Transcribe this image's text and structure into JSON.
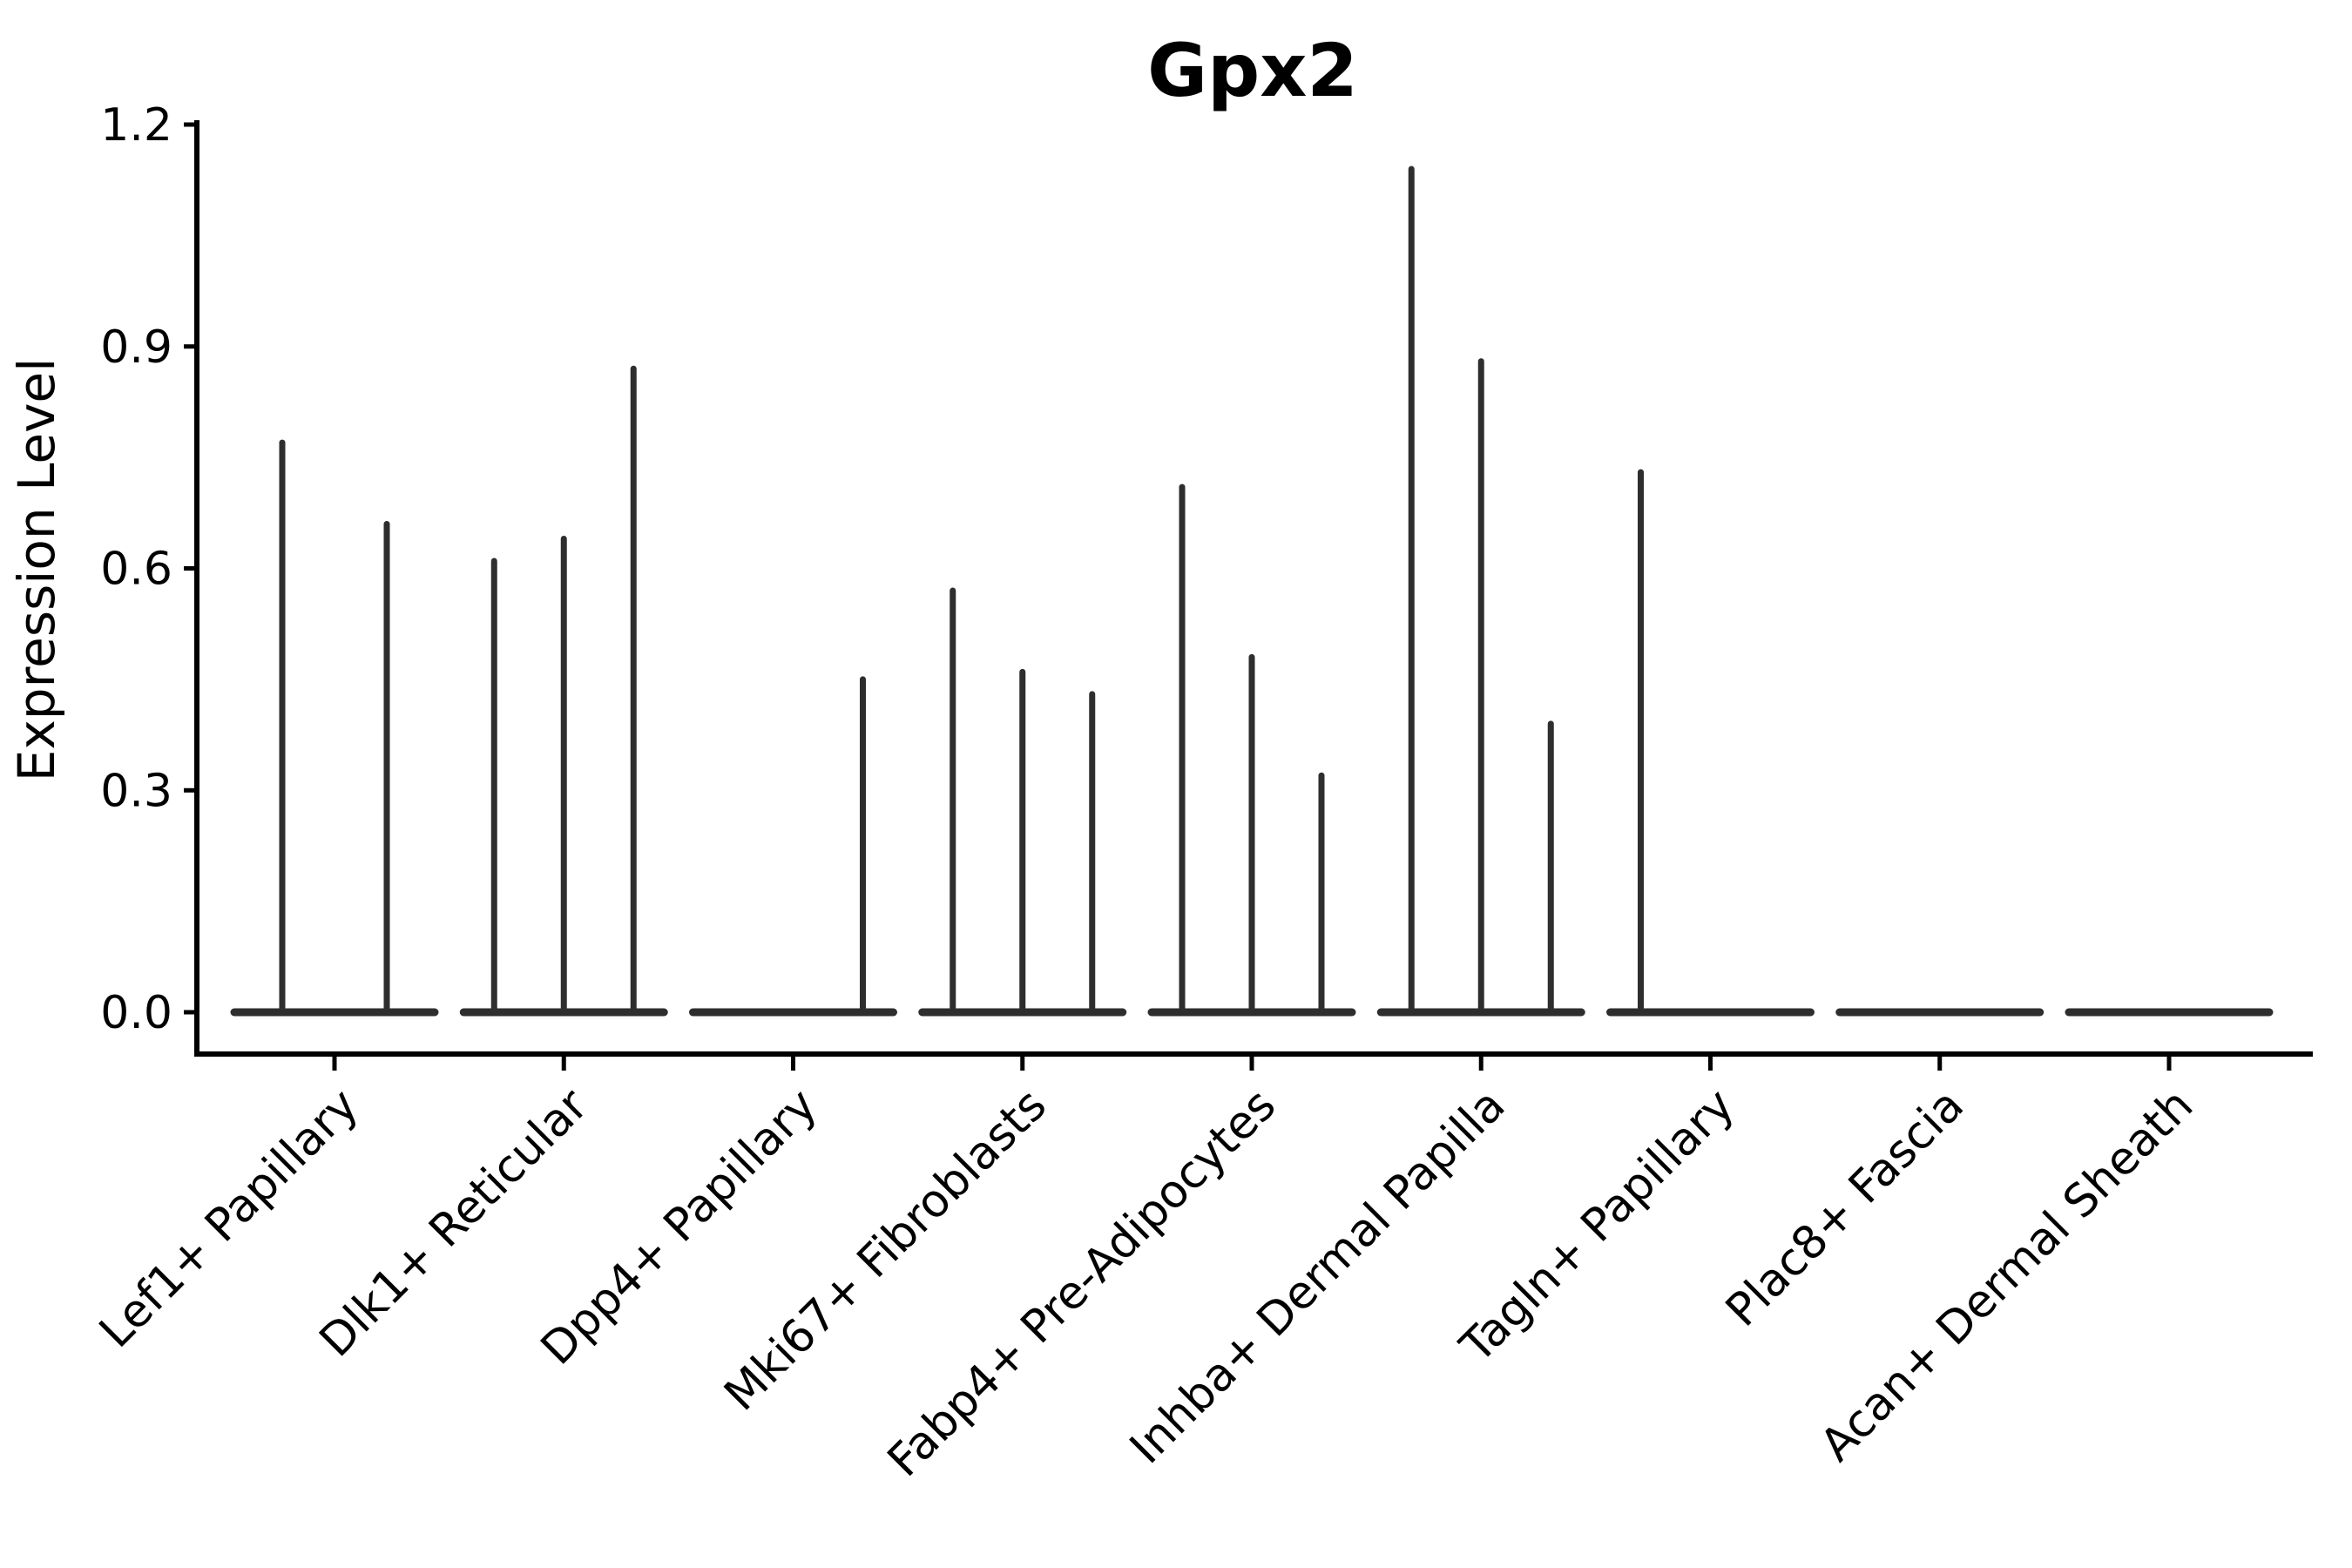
{
  "chart_data": {
    "type": "violin",
    "title": "Gpx2",
    "ylabel": "Expression Level",
    "xlabel": "",
    "ylim": [
      0,
      1.2
    ],
    "yticks": [
      "0.0",
      "0.3",
      "0.6",
      "0.9",
      "1.2"
    ],
    "grid": false,
    "legend": "none",
    "axis_color": "#000000",
    "violin_color": "#2e2e2e",
    "categories": [
      "Lef1+ Papillary",
      "Dlk1+ Reticular",
      "Dpp4+ Papillary",
      "Mki67+ Fibroblasts",
      "Fabp4+ Pre-Adipocytes",
      "Inhba+ Dermal Papilla",
      "Tagln+ Papillary",
      "Plac8+ Fascia",
      "Acan+ Dermal Sheath"
    ],
    "series": [
      {
        "category": "Lef1+ Papillary",
        "violin_maxima": [
          0.77,
          0.66
        ]
      },
      {
        "category": "Dlk1+ Reticular",
        "violin_maxima": [
          0.61,
          0.64,
          0.87
        ]
      },
      {
        "category": "Dpp4+ Papillary",
        "violin_maxima": [
          0.0,
          0.0,
          0.45
        ]
      },
      {
        "category": "Mki67+ Fibroblasts",
        "violin_maxima": [
          0.57,
          0.46,
          0.43
        ]
      },
      {
        "category": "Fabp4+ Pre-Adipocytes",
        "violin_maxima": [
          0.71,
          0.48,
          0.32
        ]
      },
      {
        "category": "Inhba+ Dermal Papilla",
        "violin_maxima": [
          1.14,
          0.88,
          0.39
        ]
      },
      {
        "category": "Tagln+ Papillary",
        "violin_maxima": [
          0.73,
          0.0,
          0.0
        ]
      },
      {
        "category": "Plac8+ Fascia",
        "violin_maxima": [
          0.0,
          0.0,
          0.0
        ]
      },
      {
        "category": "Acan+ Dermal Sheath",
        "violin_maxima": [
          0.0,
          0.0,
          0.0
        ]
      }
    ]
  }
}
